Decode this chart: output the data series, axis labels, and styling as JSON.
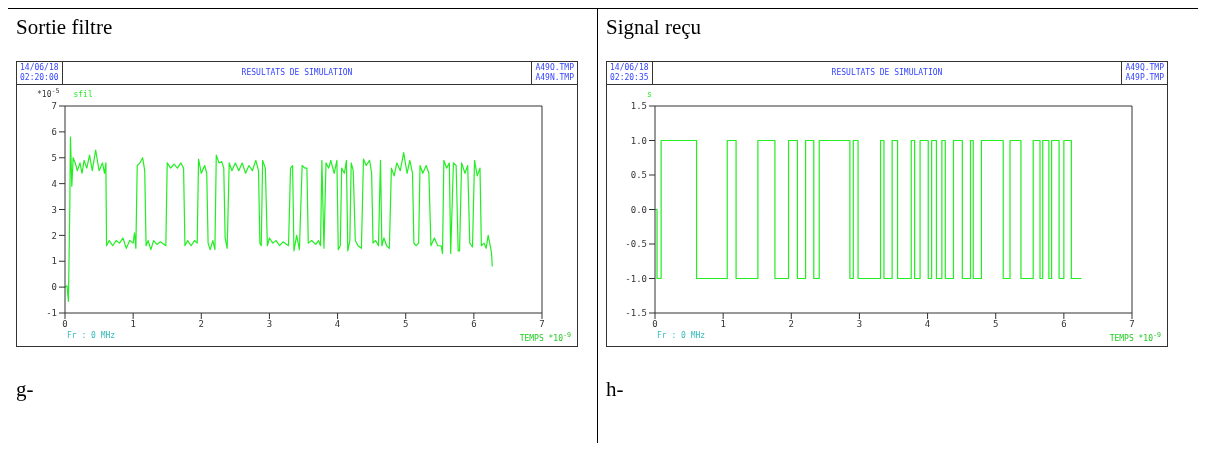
{
  "chart_data": [
    {
      "type": "line",
      "title": "Sortie filtre",
      "ylabel": "*10$^{-5}$",
      "xlabel": "TEMPS *10$^{-9}$",
      "annotations": [
        "14/06/18",
        "02:20:00",
        "RESULTATS DE SIMULATION",
        "A49O.TMP",
        "A49N.TMP",
        "Fr : 0 MHz",
        "g-"
      ],
      "x": [
        0,
        0.03,
        0.05,
        0.07,
        0.08,
        0.1,
        0.12,
        0.15,
        0.18,
        0.22,
        0.25,
        0.28,
        0.32,
        0.36,
        0.4,
        0.45,
        0.5,
        0.55,
        0.58,
        0.6,
        0.61,
        0.65,
        0.7,
        0.75,
        0.8,
        0.85,
        0.9,
        0.95,
        1.0,
        1.02,
        1.04,
        1.06,
        1.1,
        1.14,
        1.17,
        1.19,
        1.22,
        1.26,
        1.3,
        1.35,
        1.4,
        1.48,
        1.5,
        1.55,
        1.6,
        1.65,
        1.7,
        1.74,
        1.76,
        1.8,
        1.85,
        1.9,
        1.94,
        1.96,
        2.0,
        2.05,
        2.08,
        2.1,
        2.13,
        2.17,
        2.2,
        2.22,
        2.26,
        2.3,
        2.33,
        2.35,
        2.38,
        2.41,
        2.45,
        2.5,
        2.55,
        2.6,
        2.65,
        2.7,
        2.75,
        2.8,
        2.84,
        2.86,
        2.88,
        2.9,
        2.94,
        2.97,
        3.0,
        3.05,
        3.1,
        3.15,
        3.2,
        3.28,
        3.31,
        3.34,
        3.36,
        3.4,
        3.44,
        3.48,
        3.52,
        3.55,
        3.57,
        3.62,
        3.68,
        3.72,
        3.75,
        3.77,
        3.8,
        3.83,
        3.87,
        3.9,
        3.95,
        3.99,
        4.01,
        4.04,
        4.06,
        4.1,
        4.13,
        4.15,
        4.18,
        4.2,
        4.23,
        4.26,
        4.3,
        4.35,
        4.38,
        4.42,
        4.47,
        4.5,
        4.52,
        4.56,
        4.6,
        4.63,
        4.65,
        4.68,
        4.72,
        4.76,
        4.79,
        4.83,
        4.87,
        4.92,
        4.97,
        5.02,
        5.06,
        5.1,
        5.12,
        5.15,
        5.19,
        5.21,
        5.25,
        5.3,
        5.34,
        5.37,
        5.42,
        5.47,
        5.52,
        5.54,
        5.56,
        5.6,
        5.64,
        5.66,
        5.7,
        5.74,
        5.77,
        5.79,
        5.82,
        5.87,
        5.91,
        5.94,
        5.98,
        6.01,
        6.05,
        6.09,
        6.11,
        6.15,
        6.18,
        6.21,
        6.24,
        6.26,
        6.27
      ],
      "series": [
        {
          "name": "sfil",
          "color": "#22ee22",
          "values": [
            0,
            0.05,
            -0.55,
            3.0,
            5.8,
            3.9,
            5.0,
            4.8,
            4.5,
            4.8,
            4.4,
            4.9,
            4.6,
            5.1,
            4.5,
            5.3,
            4.5,
            4.8,
            4.4,
            4.8,
            1.6,
            1.8,
            1.6,
            1.8,
            1.7,
            1.9,
            1.5,
            1.8,
            1.7,
            2.1,
            1.5,
            4.7,
            4.8,
            5.0,
            4.5,
            1.6,
            1.8,
            1.45,
            1.8,
            1.65,
            1.75,
            1.6,
            4.8,
            4.6,
            4.75,
            4.6,
            4.8,
            4.6,
            1.6,
            1.8,
            1.6,
            1.8,
            1.7,
            4.95,
            4.4,
            4.7,
            4.4,
            1.7,
            1.45,
            1.8,
            1.45,
            5.1,
            4.8,
            4.85,
            4.6,
            1.9,
            1.5,
            4.8,
            4.5,
            4.8,
            4.5,
            4.8,
            4.4,
            4.7,
            4.5,
            4.9,
            4.5,
            1.7,
            1.6,
            4.9,
            4.6,
            1.6,
            1.9,
            1.7,
            1.8,
            1.6,
            1.75,
            1.6,
            4.6,
            4.7,
            1.4,
            2.0,
            1.45,
            4.7,
            4.6,
            4.6,
            1.7,
            1.8,
            1.65,
            1.8,
            1.6,
            4.9,
            1.5,
            4.8,
            4.6,
            4.9,
            4.4,
            4.9,
            1.45,
            1.6,
            4.6,
            4.4,
            4.9,
            1.4,
            1.8,
            4.8,
            4.5,
            1.8,
            1.6,
            1.5,
            4.95,
            4.7,
            4.9,
            4.4,
            1.7,
            1.8,
            1.6,
            4.9,
            1.6,
            1.9,
            1.6,
            1.5,
            4.6,
            4.3,
            4.8,
            4.5,
            5.2,
            4.4,
            4.9,
            4.4,
            1.7,
            1.6,
            1.7,
            4.7,
            4.4,
            4.7,
            4.4,
            1.6,
            1.9,
            1.6,
            1.6,
            1.3,
            4.9,
            4.6,
            4.8,
            1.3,
            4.8,
            4.7,
            1.4,
            1.4,
            4.8,
            4.4,
            4.7,
            1.7,
            1.55,
            4.9,
            4.3,
            4.6,
            1.6,
            1.7,
            1.5,
            2.0,
            1.6,
            1.3,
            0.8
          ]
        }
      ],
      "xlim": [
        0,
        7
      ],
      "xticks": [
        0,
        1,
        2,
        3,
        4,
        5,
        6,
        7
      ],
      "ylim": [
        -1,
        7
      ],
      "yticks": [
        -1,
        0,
        1,
        2,
        3,
        4,
        5,
        6,
        7
      ]
    },
    {
      "type": "step",
      "title": "Signal reçu",
      "xlabel": "TEMPS *10$^{-9}$",
      "annotations": [
        "14/06/18",
        "02:20:35",
        "RESULTATS DE SIMULATION",
        "A49Q.TMP",
        "A49P.TMP",
        "Fr : 0 MHz",
        "h-"
      ],
      "x": [
        0,
        0.03,
        0.09,
        0.61,
        1.06,
        1.19,
        1.51,
        1.76,
        1.96,
        2.09,
        2.21,
        2.33,
        2.41,
        2.86,
        2.91,
        2.98,
        3.31,
        3.36,
        3.48,
        3.56,
        3.76,
        3.81,
        3.89,
        4.01,
        4.06,
        4.13,
        4.21,
        4.26,
        4.38,
        4.51,
        4.63,
        4.67,
        4.79,
        5.11,
        5.21,
        5.37,
        5.55,
        5.65,
        5.69,
        5.78,
        5.82,
        5.93,
        6.0,
        6.11,
        6.26
      ],
      "series": [
        {
          "name": "s",
          "color": "#22ee22",
          "values": [
            0,
            -1,
            1,
            -1,
            1,
            -1,
            1,
            -1,
            1,
            -1,
            1,
            -1,
            1,
            -1,
            1,
            -1,
            1,
            -1,
            1,
            -1,
            1,
            -1,
            1,
            -1,
            1,
            -1,
            1,
            -1,
            1,
            -1,
            1,
            -1,
            1,
            -1,
            1,
            -1,
            1,
            -1,
            1,
            -1,
            1,
            -1,
            1,
            -1,
            -1
          ]
        }
      ],
      "xlim": [
        0,
        7
      ],
      "xticks": [
        0,
        1,
        2,
        3,
        4,
        5,
        6,
        7
      ],
      "ylim": [
        -1.5,
        1.5
      ],
      "yticks": [
        {
          "value": -1.5,
          "label": "-1.5"
        },
        {
          "value": -1,
          "label": "-1.0"
        },
        {
          "value": -0.5,
          "label": "-0.5"
        },
        {
          "value": 0,
          "label": "0.0"
        },
        {
          "value": 0.5,
          "label": "0.5"
        },
        {
          "value": 1,
          "label": "1.0"
        },
        {
          "value": 1.5,
          "label": "1.5"
        }
      ]
    }
  ]
}
